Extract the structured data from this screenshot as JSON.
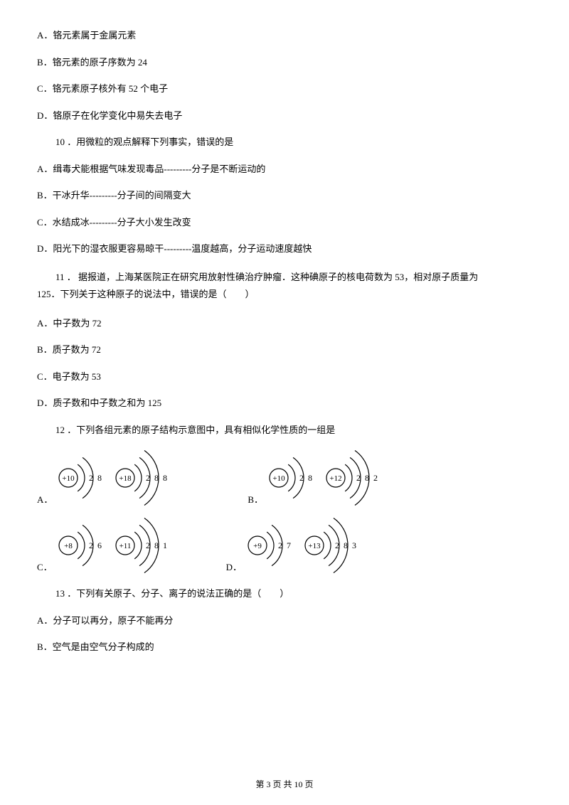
{
  "options_top": {
    "a": "A．铬元素属于金属元素",
    "b": "B．铬元素的原子序数为 24",
    "c": "C．铬元素原子核外有 52 个电子",
    "d": "D．铬原子在化学变化中易失去电子"
  },
  "q10": {
    "question": "10 ．用微粒的观点解释下列事实，错误的是",
    "a": "A．缉毒犬能根据气味发现毒品---------分子是不断运动的",
    "b": "B．干冰升华---------分子间的间隔变大",
    "c": "C．水结成冰---------分子大小发生改变",
    "d": "D．阳光下的湿衣服更容易晾干---------温度越高，分子运动速度越快"
  },
  "q11": {
    "question_line1": "11 ． 据报道，上海某医院正在研究用放射性碘治疗肿瘤．这种碘原子的核电荷数为 53，相对原子质量为",
    "question_line2": "125．下列关于这种原子的说法中，错误的是（　　）",
    "a": "A．中子数为 72",
    "b": "B．质子数为 72",
    "c": "C．电子数为 53",
    "d": "D．质子数和中子数之和为 125"
  },
  "q12": {
    "question": "12 ．下列各组元素的原子结构示意图中，具有相似化学性质的一组是",
    "label_a": "A．",
    "label_b": "B．",
    "label_c": "C．",
    "label_d": "D．",
    "atoms": {
      "a1": {
        "nucleus": "+10",
        "shells": [
          "2",
          "8"
        ]
      },
      "a2": {
        "nucleus": "+18",
        "shells": [
          "2",
          "8",
          "8"
        ]
      },
      "b1": {
        "nucleus": "+10",
        "shells": [
          "2",
          "8"
        ]
      },
      "b2": {
        "nucleus": "+12",
        "shells": [
          "2",
          "8",
          "2"
        ]
      },
      "c1": {
        "nucleus": "+8",
        "shells": [
          "2",
          "6"
        ]
      },
      "c2": {
        "nucleus": "+11",
        "shells": [
          "2",
          "8",
          "1"
        ]
      },
      "d1": {
        "nucleus": "+9",
        "shells": [
          "2",
          "7"
        ]
      },
      "d2": {
        "nucleus": "+13",
        "shells": [
          "2",
          "8",
          "3"
        ]
      }
    }
  },
  "q13": {
    "question": "13 ．下列有关原子、分子、离子的说法正确的是（　　）",
    "a": "A．分子可以再分，原子不能再分",
    "b": "B．空气是由空气分子构成的"
  },
  "footer": "第 3 页 共 10 页",
  "colors": {
    "text": "#000000",
    "bg": "#ffffff",
    "stroke": "#000000"
  }
}
